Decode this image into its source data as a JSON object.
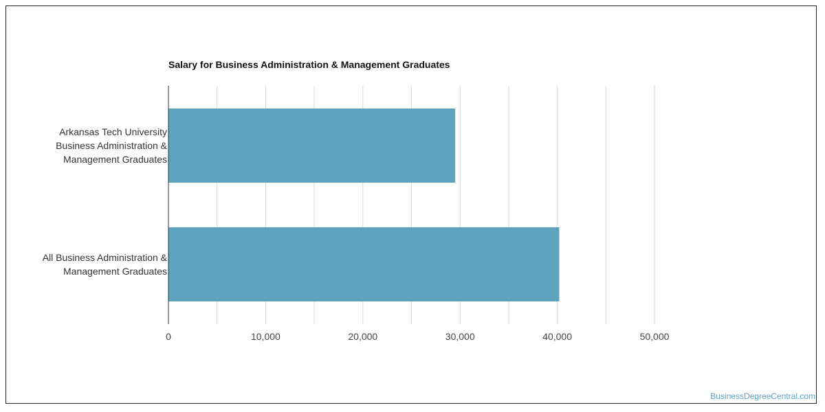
{
  "chart_data": {
    "type": "bar",
    "orientation": "horizontal",
    "title": "Salary for Business Administration & Management Graduates",
    "categories": [
      [
        "Arkansas Tech University",
        "Business Administration &",
        "Management Graduates"
      ],
      [
        "All Business Administration &",
        "Management Graduates"
      ]
    ],
    "values": [
      29500,
      40200
    ],
    "xlim": [
      0,
      50000
    ],
    "ticks": [
      "0",
      "10,000",
      "20,000",
      "30,000",
      "40,000",
      "50,000"
    ],
    "tick_values": [
      0,
      10000,
      20000,
      30000,
      40000,
      50000
    ],
    "grid": true,
    "bar_color": "#5da3c0",
    "grid_color": "#d9d9d9"
  },
  "watermark": "BusinessDegreeCentral.com"
}
